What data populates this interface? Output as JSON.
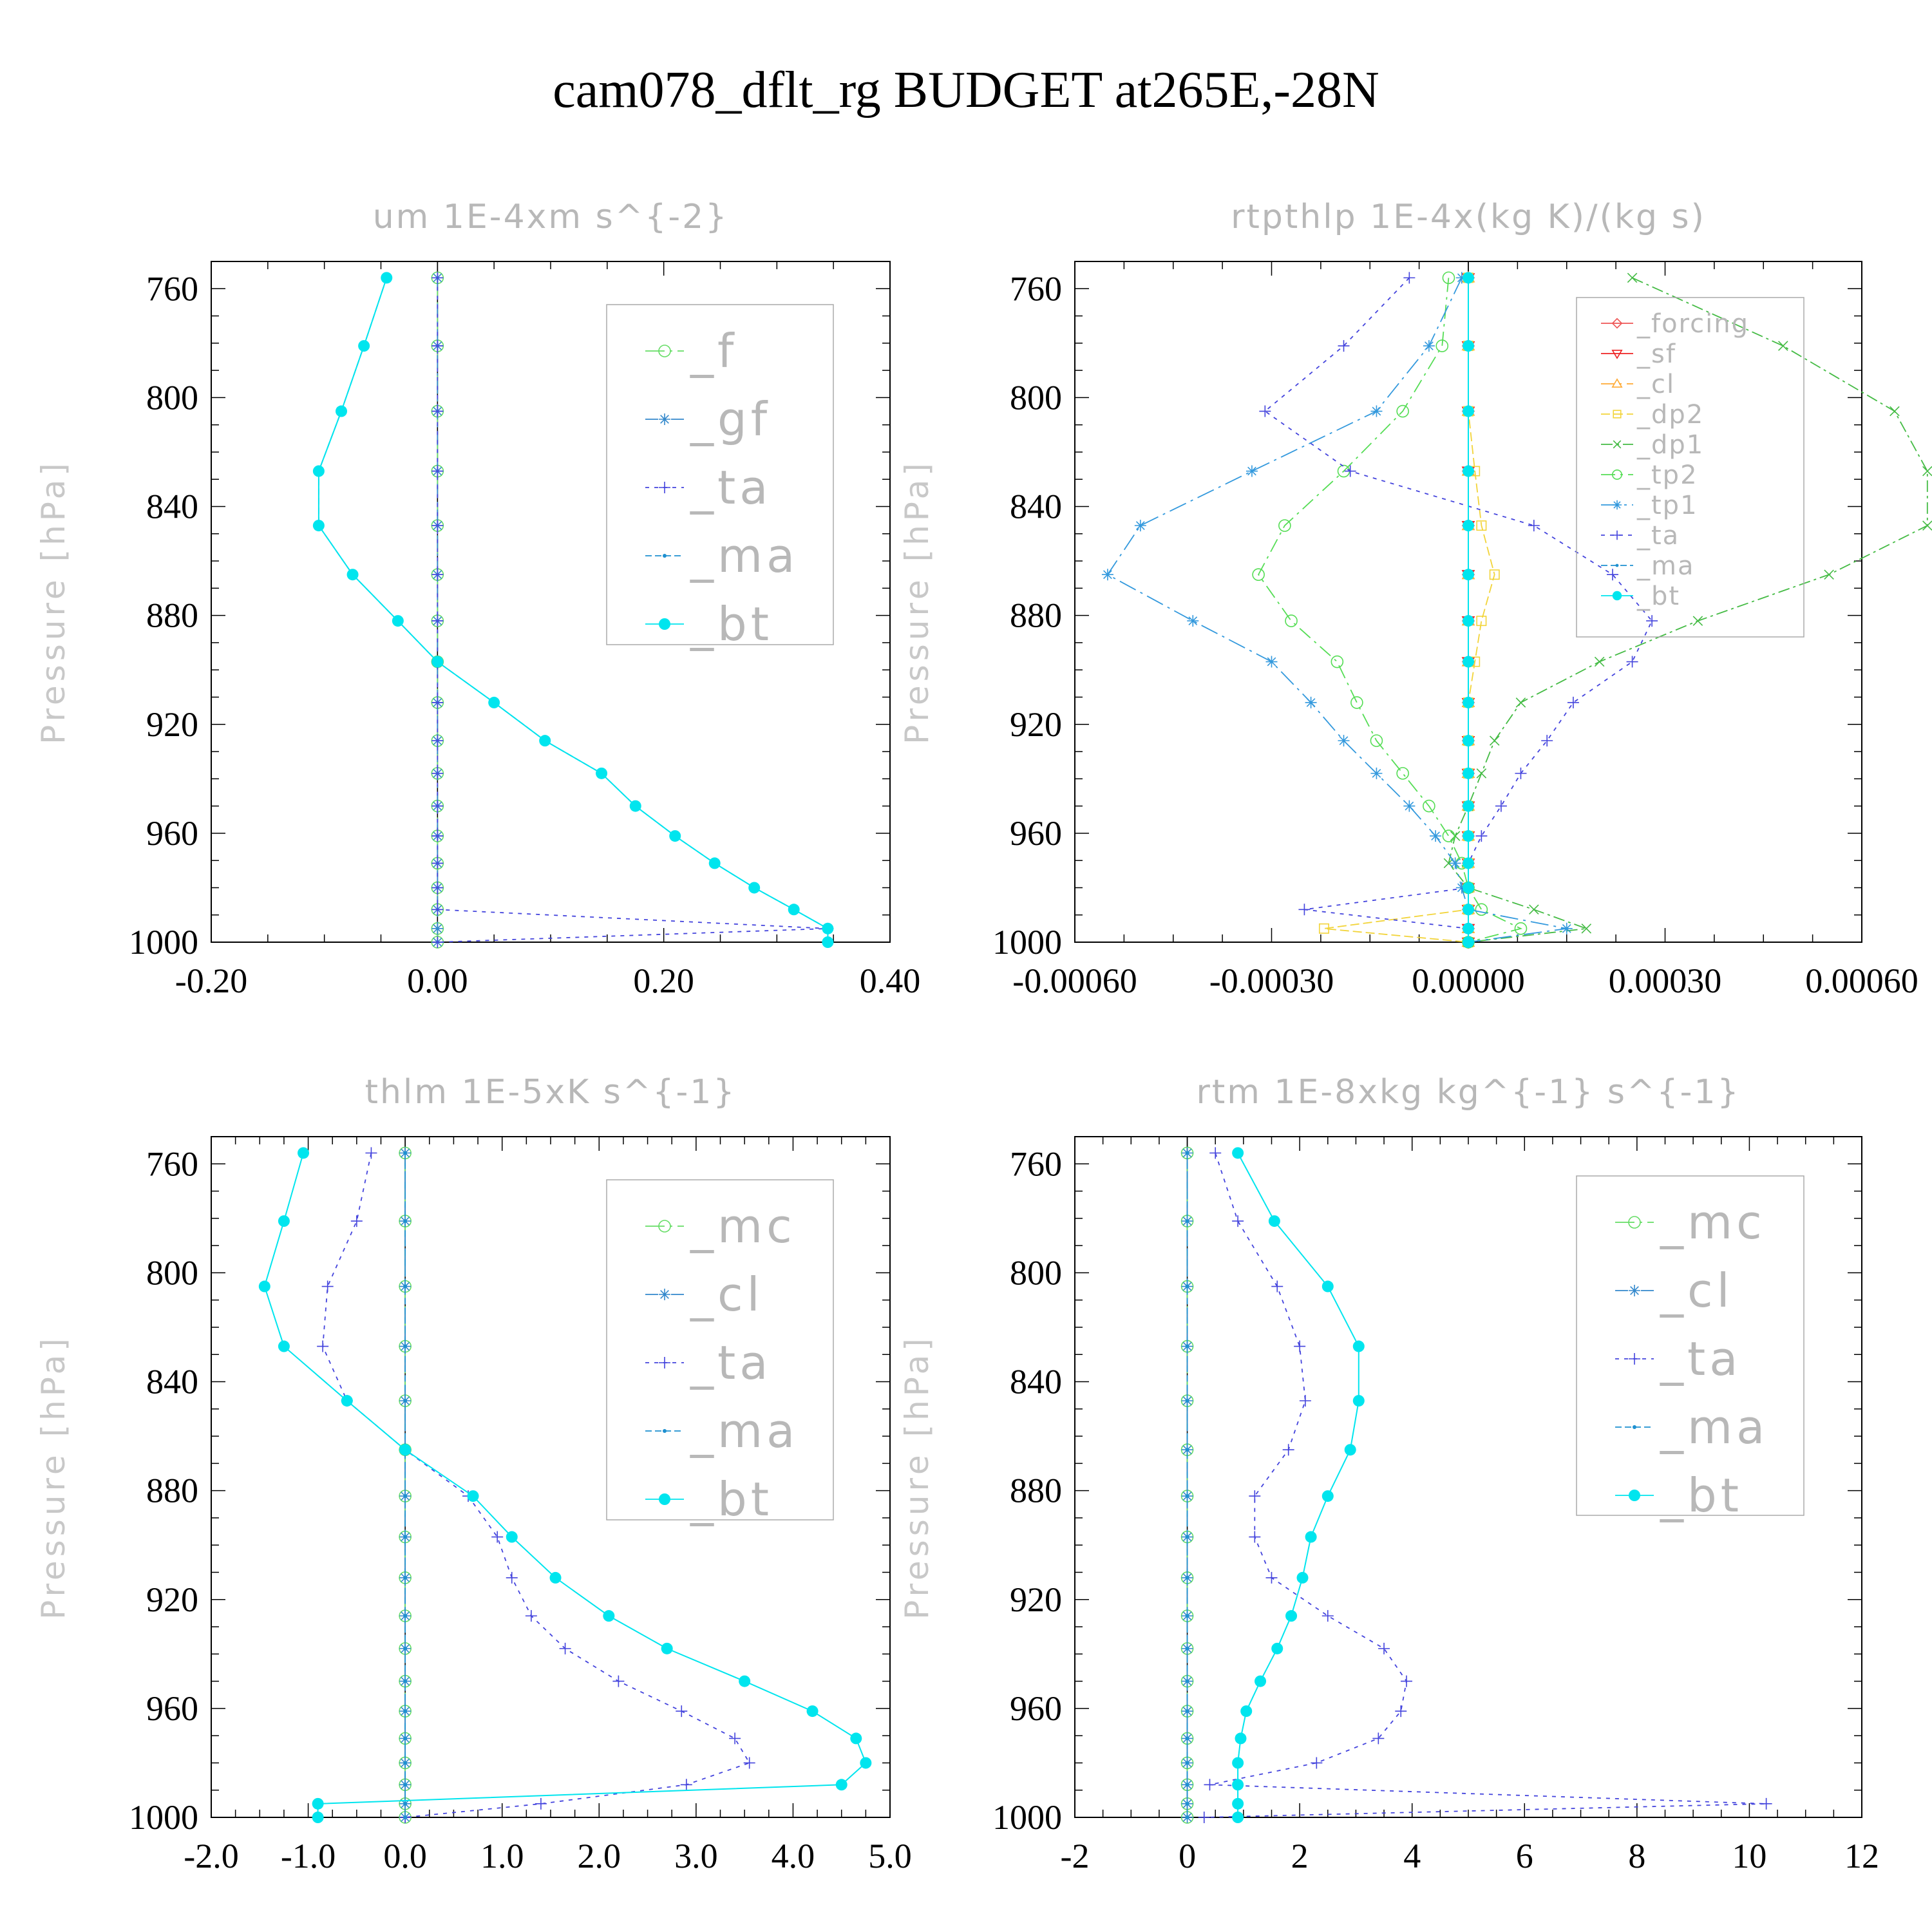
{
  "title": "cam078_dflt_rg  BUDGET at265E,-28N",
  "chart_data": [
    {
      "type": "line",
      "title": "um  1E-4xm s^{-2}",
      "ylabel": "Pressure [hPa]",
      "xlabel": "",
      "xlim": [
        -0.2,
        0.4
      ],
      "ylim": [
        1000,
        750
      ],
      "xticks": [
        "-0.20",
        "0.00",
        "0.20",
        "0.40"
      ],
      "yticks": [
        "760",
        "800",
        "840",
        "880",
        "920",
        "960",
        "1000"
      ],
      "levels": [
        756,
        781,
        805,
        827,
        847,
        865,
        882,
        897,
        912,
        926,
        938,
        950,
        961,
        971,
        980,
        988,
        995,
        1000
      ],
      "series": [
        {
          "name": "_f",
          "color": "#66dd66",
          "marker": "circle",
          "values": [
            0,
            0,
            0,
            0,
            0,
            0,
            0,
            0,
            0,
            0,
            0,
            0,
            0,
            0,
            0,
            0,
            0,
            0
          ]
        },
        {
          "name": "_gf",
          "color": "#3388cc",
          "marker": "star",
          "values": [
            0,
            0,
            0,
            0,
            0,
            0,
            0,
            0,
            0,
            0,
            0,
            0,
            0,
            0,
            0,
            0,
            0,
            0
          ]
        },
        {
          "name": "_ta",
          "color": "#4444dd",
          "marker": "plus",
          "values": [
            0,
            0,
            0,
            0,
            0,
            0,
            0,
            0,
            0,
            0,
            0,
            0,
            0,
            0,
            0,
            0,
            0.345,
            0
          ]
        },
        {
          "name": "_ma",
          "color": "#1e90d0",
          "marker": "dot",
          "values": [
            -0.045,
            -0.065,
            -0.085,
            -0.105,
            -0.105,
            -0.075,
            -0.035,
            0.0,
            0.05,
            0.095,
            0.145,
            0.175,
            0.21,
            0.245,
            0.28,
            0.315,
            0.345,
            0.345
          ]
        },
        {
          "name": "_bt",
          "color": "#00e5ee",
          "marker": "bigdot",
          "values": [
            -0.045,
            -0.065,
            -0.085,
            -0.105,
            -0.105,
            -0.075,
            -0.035,
            0.0,
            0.05,
            0.095,
            0.145,
            0.175,
            0.21,
            0.245,
            0.28,
            0.315,
            0.345,
            0.345
          ]
        }
      ]
    },
    {
      "type": "line",
      "title": "rtpthlp  1E-4x(kg K)/(kg s)",
      "ylabel": "Pressure [hPa]",
      "xlabel": "",
      "xlim": [
        -0.0006,
        0.0006
      ],
      "ylim": [
        1000,
        750
      ],
      "xticks": [
        "-0.00060",
        "-0.00030",
        "0.00000",
        "0.00030",
        "0.00060"
      ],
      "yticks": [
        "760",
        "800",
        "840",
        "880",
        "920",
        "960",
        "1000"
      ],
      "levels": [
        756,
        781,
        805,
        827,
        847,
        865,
        882,
        897,
        912,
        926,
        938,
        950,
        961,
        971,
        980,
        988,
        995,
        1000
      ],
      "series": [
        {
          "name": "_forcing",
          "color": "#ee5555",
          "marker": "diamond",
          "values": [
            0,
            0,
            0,
            0,
            0,
            0,
            0,
            0,
            0,
            0,
            0,
            0,
            0,
            0,
            0,
            0,
            0,
            0
          ]
        },
        {
          "name": "_sf",
          "color": "#ee2222",
          "marker": "tri-down",
          "values": [
            0,
            0,
            0,
            0,
            0,
            0,
            0,
            0,
            0,
            0,
            0,
            0,
            0,
            0,
            0,
            0,
            0,
            0
          ]
        },
        {
          "name": "_cl",
          "color": "#ffaa33",
          "marker": "tri-up",
          "values": [
            0,
            0,
            0,
            0,
            0,
            0,
            0,
            0,
            0,
            0,
            0,
            0,
            0,
            0,
            0,
            0,
            0,
            0
          ]
        },
        {
          "name": "_dp2",
          "color": "#f2d43a",
          "marker": "square",
          "values": [
            0,
            0,
            0,
            1e-05,
            2e-05,
            4e-05,
            2e-05,
            1e-05,
            0,
            0,
            0,
            0,
            0,
            0,
            0,
            0,
            -0.00022,
            0
          ]
        },
        {
          "name": "_dp1",
          "color": "#44bb44",
          "marker": "x",
          "values": [
            0.00025,
            0.00048,
            0.00065,
            0.0007,
            0.0007,
            0.00055,
            0.00035,
            0.0002,
            8e-05,
            4e-05,
            2e-05,
            0,
            -2e-05,
            -3e-05,
            0,
            0.0001,
            0.00018,
            0
          ]
        },
        {
          "name": "_tp2",
          "color": "#55dd55",
          "marker": "circle",
          "values": [
            -3e-05,
            -4e-05,
            -0.0001,
            -0.00019,
            -0.00028,
            -0.00032,
            -0.00027,
            -0.0002,
            -0.00017,
            -0.00014,
            -0.0001,
            -6e-05,
            -3e-05,
            -1e-05,
            0,
            2e-05,
            8e-05,
            0
          ]
        },
        {
          "name": "_tp1",
          "color": "#3399dd",
          "marker": "star",
          "values": [
            -1e-05,
            -6e-05,
            -0.00014,
            -0.00033,
            -0.0005,
            -0.00055,
            -0.00042,
            -0.0003,
            -0.00024,
            -0.00019,
            -0.00014,
            -9e-05,
            -5e-05,
            -2e-05,
            -1e-05,
            0,
            0.00015,
            0
          ]
        },
        {
          "name": "_ta",
          "color": "#4444dd",
          "marker": "plus",
          "values": [
            -9e-05,
            -0.00019,
            -0.00031,
            -0.00018,
            0.0001,
            0.00022,
            0.00028,
            0.00025,
            0.00016,
            0.00012,
            8e-05,
            5e-05,
            2e-05,
            0,
            0,
            -0.00025,
            0,
            0
          ]
        },
        {
          "name": "_ma",
          "color": "#1e90d0",
          "marker": "dot",
          "values": [
            0,
            0,
            0,
            0,
            0,
            0,
            0,
            0,
            0,
            0,
            0,
            0,
            0,
            0,
            0,
            0,
            0,
            0
          ]
        },
        {
          "name": "_bt",
          "color": "#00e5ee",
          "marker": "bigdot",
          "values": [
            0,
            0,
            0,
            0,
            0,
            0,
            0,
            0,
            0,
            0,
            0,
            0,
            0,
            0,
            0,
            0,
            0,
            0
          ]
        }
      ]
    },
    {
      "type": "line",
      "title": "thlm  1E-5xK s^{-1}",
      "ylabel": "Pressure [hPa]",
      "xlabel": "",
      "xlim": [
        -2.0,
        5.0
      ],
      "ylim": [
        1000,
        750
      ],
      "xticks": [
        "-2.0",
        "-1.0",
        "0.0",
        "1.0",
        "2.0",
        "3.0",
        "4.0",
        "5.0"
      ],
      "yticks": [
        "760",
        "800",
        "840",
        "880",
        "920",
        "960",
        "1000"
      ],
      "levels": [
        756,
        781,
        805,
        827,
        847,
        865,
        882,
        897,
        912,
        926,
        938,
        950,
        961,
        971,
        980,
        988,
        995,
        1000
      ],
      "series": [
        {
          "name": "_mc",
          "color": "#66dd66",
          "marker": "circle",
          "values": [
            0,
            0,
            0,
            0,
            0,
            0,
            0,
            0,
            0,
            0,
            0,
            0,
            0,
            0,
            0,
            0,
            0,
            0
          ]
        },
        {
          "name": "_cl",
          "color": "#3388cc",
          "marker": "star",
          "values": [
            0,
            0,
            0,
            0,
            0,
            0,
            0,
            0,
            0,
            0,
            0,
            0,
            0,
            0,
            0,
            0,
            0,
            0
          ]
        },
        {
          "name": "_ta",
          "color": "#4444dd",
          "marker": "plus",
          "values": [
            -0.35,
            -0.5,
            -0.8,
            -0.85,
            -0.6,
            0,
            0.65,
            0.95,
            1.1,
            1.3,
            1.65,
            2.2,
            2.85,
            3.4,
            3.55,
            2.9,
            1.4,
            0
          ]
        },
        {
          "name": "_ma",
          "color": "#1e90d0",
          "marker": "dot",
          "values": [
            0,
            0,
            0,
            0,
            0,
            0,
            0,
            0,
            0,
            0,
            0,
            0,
            0,
            0,
            0,
            0,
            0,
            0
          ]
        },
        {
          "name": "_bt",
          "color": "#00e5ee",
          "marker": "bigdot",
          "values": [
            -1.05,
            -1.25,
            -1.45,
            -1.25,
            -0.6,
            0,
            0.7,
            1.1,
            1.55,
            2.1,
            2.7,
            3.5,
            4.2,
            4.65,
            4.75,
            4.5,
            -0.9,
            -0.9
          ]
        }
      ]
    },
    {
      "type": "line",
      "title": "rtm  1E-8xkg kg^{-1} s^{-1}",
      "ylabel": "Pressure [hPa]",
      "xlabel": "",
      "xlim": [
        -2,
        12
      ],
      "ylim": [
        1000,
        750
      ],
      "xticks": [
        "-2",
        "0",
        "2",
        "4",
        "6",
        "8",
        "10",
        "12"
      ],
      "yticks": [
        "760",
        "800",
        "840",
        "880",
        "920",
        "960",
        "1000"
      ],
      "levels": [
        756,
        781,
        805,
        827,
        847,
        865,
        882,
        897,
        912,
        926,
        938,
        950,
        961,
        971,
        980,
        988,
        995,
        1000
      ],
      "series": [
        {
          "name": "_mc",
          "color": "#66dd66",
          "marker": "circle",
          "values": [
            0,
            0,
            0,
            0,
            0,
            0,
            0,
            0,
            0,
            0,
            0,
            0,
            0,
            0,
            0,
            0,
            0,
            0
          ]
        },
        {
          "name": "_cl",
          "color": "#3388cc",
          "marker": "star",
          "values": [
            0,
            0,
            0,
            0,
            0,
            0,
            0,
            0,
            0,
            0,
            0,
            0,
            0,
            0,
            0,
            0,
            0,
            0
          ]
        },
        {
          "name": "_ta",
          "color": "#4444dd",
          "marker": "plus",
          "values": [
            0.5,
            0.9,
            1.6,
            2.0,
            2.1,
            1.8,
            1.2,
            1.2,
            1.5,
            2.5,
            3.5,
            3.9,
            3.8,
            3.4,
            2.3,
            0.4,
            10.3,
            0.3
          ]
        },
        {
          "name": "_ma",
          "color": "#1e90d0",
          "marker": "dot",
          "values": [
            0,
            0,
            0,
            0,
            0,
            0,
            0,
            0,
            0,
            0,
            0,
            0,
            0,
            0,
            0,
            0,
            0,
            0
          ]
        },
        {
          "name": "_bt",
          "color": "#00e5ee",
          "marker": "bigdot",
          "values": [
            0.9,
            1.55,
            2.5,
            3.05,
            3.05,
            2.9,
            2.5,
            2.2,
            2.05,
            1.85,
            1.6,
            1.3,
            1.05,
            0.95,
            0.9,
            0.9,
            0.9,
            0.9
          ]
        }
      ]
    }
  ]
}
